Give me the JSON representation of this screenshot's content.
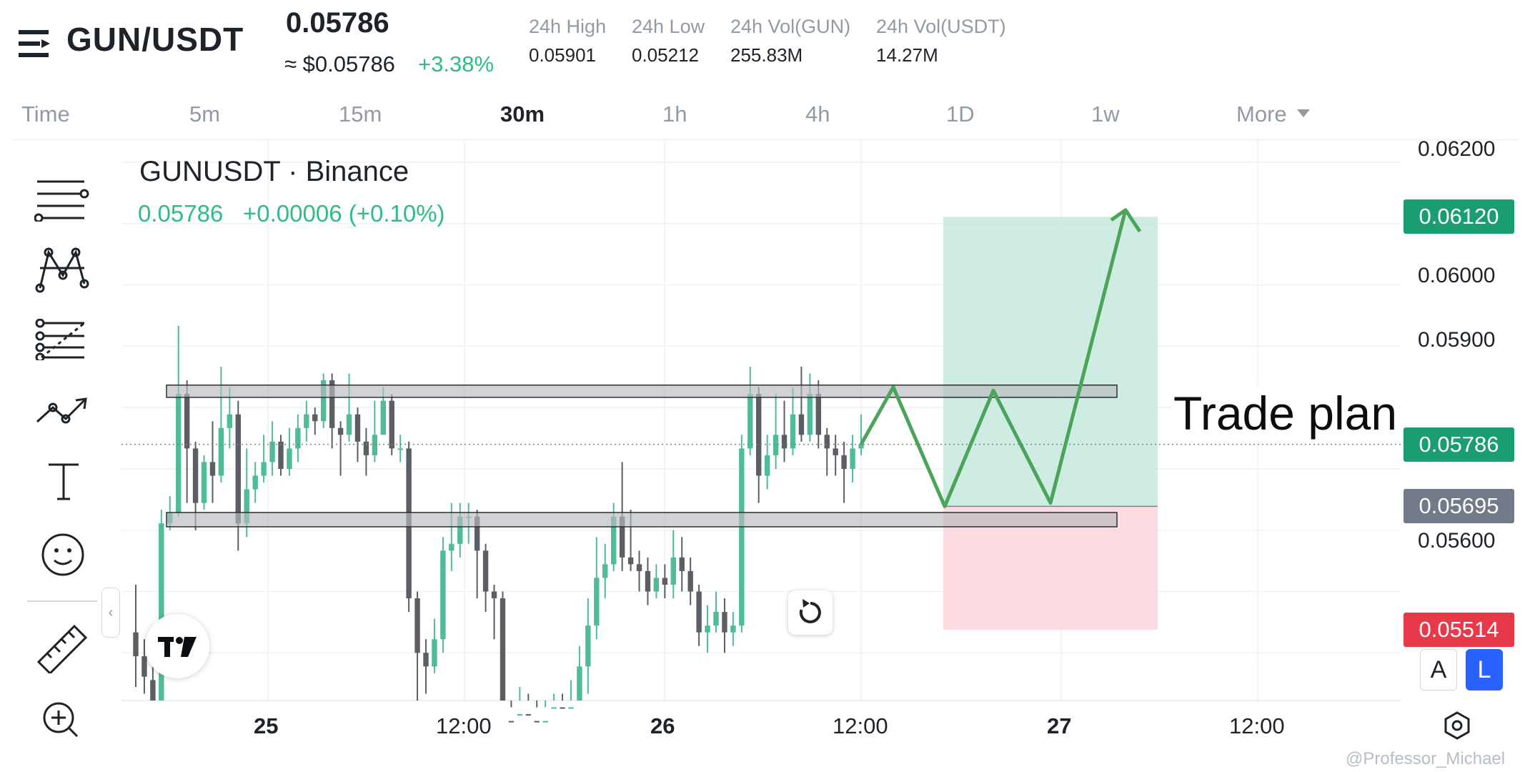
{
  "header": {
    "pair": "GUN/USDT",
    "last_price": "0.05786",
    "usd_price": "≈ $0.05786",
    "change_pct": "+3.38%",
    "stats": [
      {
        "label": "24h High",
        "value": "0.05901"
      },
      {
        "label": "24h Low",
        "value": "0.05212"
      },
      {
        "label": "24h Vol(GUN)",
        "value": "255.83M"
      },
      {
        "label": "24h Vol(USDT)",
        "value": "14.27M"
      }
    ]
  },
  "timeframes": {
    "items": [
      "Time",
      "5m",
      "15m",
      "30m",
      "1h",
      "4h",
      "1D",
      "1w",
      "More"
    ],
    "active": "30m"
  },
  "toolbar": {
    "tools": [
      "menu-lines-icon",
      "pattern-icon",
      "fib-icon",
      "trend-line-icon",
      "text-tool-icon",
      "emoji-icon",
      "ruler-icon",
      "zoom-in-icon"
    ]
  },
  "chart_data": {
    "type": "candlestick",
    "title": "GUNUSDT · Binance",
    "legend_price": "0.05786",
    "legend_change": "+0.00006 (+0.10%)",
    "annotation": "Trade plan",
    "ylim": [
      0.0541,
      0.0622
    ],
    "y_ticks": [
      "0.06200",
      "0.06000",
      "0.05900",
      "0.05600"
    ],
    "x_ticks": [
      {
        "label": "25",
        "bold": true
      },
      {
        "label": "12:00",
        "bold": false
      },
      {
        "label": "26",
        "bold": true
      },
      {
        "label": "12:00",
        "bold": false
      },
      {
        "label": "27",
        "bold": true
      },
      {
        "label": "12:00",
        "bold": false
      }
    ],
    "price_tags": [
      {
        "value": "0.06120",
        "color": "#1a9d72"
      },
      {
        "value": "0.05786",
        "color": "#1a9d72"
      },
      {
        "value": "0.05695",
        "color": "#717a86"
      },
      {
        "value": "0.05514",
        "color": "#e8394b"
      }
    ],
    "current_price": 0.05786,
    "resistance_zone": [
      0.05855,
      0.05873
    ],
    "support_zone": [
      0.05665,
      0.05686
    ],
    "target": 0.0612,
    "entry": 0.05695,
    "stop": 0.05514,
    "up_color": "#4fbb97",
    "down_color": "#5b5e63",
    "candles": [
      [
        0.0551,
        0.05475,
        0.0558,
        0.0543
      ],
      [
        0.05475,
        0.05445,
        0.055,
        0.0542
      ],
      [
        0.0544,
        0.054,
        0.0546,
        0.0538
      ],
      [
        0.054,
        0.0567,
        0.0569,
        0.0538
      ],
      [
        0.0567,
        0.05685,
        0.0571,
        0.0566
      ],
      [
        0.05685,
        0.0586,
        0.0596,
        0.0568
      ],
      [
        0.0586,
        0.0578,
        0.0588,
        0.057
      ],
      [
        0.0578,
        0.057,
        0.0579,
        0.0566
      ],
      [
        0.057,
        0.0576,
        0.0577,
        0.0569
      ],
      [
        0.0576,
        0.0574,
        0.0582,
        0.057
      ],
      [
        0.0574,
        0.0581,
        0.059,
        0.0573
      ],
      [
        0.0581,
        0.0583,
        0.0587,
        0.0578
      ],
      [
        0.0583,
        0.0567,
        0.0585,
        0.0563
      ],
      [
        0.0567,
        0.0572,
        0.0578,
        0.0565
      ],
      [
        0.0572,
        0.0574,
        0.0576,
        0.057
      ],
      [
        0.0574,
        0.0576,
        0.058,
        0.0573
      ],
      [
        0.0576,
        0.0579,
        0.0582,
        0.0574
      ],
      [
        0.0579,
        0.0575,
        0.058,
        0.0574
      ],
      [
        0.0575,
        0.0578,
        0.0581,
        0.0574
      ],
      [
        0.0578,
        0.0581,
        0.0583,
        0.0576
      ],
      [
        0.0581,
        0.0583,
        0.0585,
        0.0579
      ],
      [
        0.0583,
        0.0582,
        0.0584,
        0.058
      ],
      [
        0.0582,
        0.0588,
        0.0589,
        0.0581
      ],
      [
        0.0588,
        0.0581,
        0.0589,
        0.0578
      ],
      [
        0.0581,
        0.058,
        0.0582,
        0.0574
      ],
      [
        0.058,
        0.0583,
        0.0589,
        0.0579
      ],
      [
        0.0583,
        0.0579,
        0.0584,
        0.0576
      ],
      [
        0.0579,
        0.0577,
        0.0581,
        0.0574
      ],
      [
        0.0577,
        0.058,
        0.0585,
        0.0576
      ],
      [
        0.058,
        0.0585,
        0.0587,
        0.058
      ],
      [
        0.0585,
        0.0578,
        0.0586,
        0.0577
      ],
      [
        0.0578,
        0.0578,
        0.058,
        0.0576
      ],
      [
        0.0578,
        0.0556,
        0.0579,
        0.0554
      ],
      [
        0.0556,
        0.0548,
        0.0557,
        0.054
      ],
      [
        0.0548,
        0.0546,
        0.055,
        0.0542
      ],
      [
        0.0546,
        0.055,
        0.0553,
        0.0545
      ],
      [
        0.055,
        0.0563,
        0.0565,
        0.0548
      ],
      [
        0.0563,
        0.0564,
        0.057,
        0.056
      ],
      [
        0.0564,
        0.0568,
        0.057,
        0.0562
      ],
      [
        0.0568,
        0.0568,
        0.057,
        0.0564
      ],
      [
        0.0568,
        0.0563,
        0.0569,
        0.0556
      ],
      [
        0.0563,
        0.0557,
        0.0564,
        0.0554
      ],
      [
        0.0557,
        0.0556,
        0.0558,
        0.055
      ],
      [
        0.0556,
        0.0538,
        0.0557,
        0.053
      ],
      [
        0.0538,
        0.053,
        0.054,
        0.0525
      ],
      [
        0.053,
        0.0539,
        0.0543,
        0.0527
      ],
      [
        0.0539,
        0.0538,
        0.0542,
        0.0535
      ],
      [
        0.0538,
        0.0536,
        0.054,
        0.0533
      ],
      [
        0.0536,
        0.0538,
        0.054,
        0.0535
      ],
      [
        0.0538,
        0.054,
        0.0542,
        0.0537
      ],
      [
        0.054,
        0.0539,
        0.0542,
        0.0536
      ],
      [
        0.0539,
        0.054,
        0.0544,
        0.0537
      ],
      [
        0.054,
        0.0546,
        0.0549,
        0.0539
      ],
      [
        0.0546,
        0.0552,
        0.0556,
        0.0542
      ],
      [
        0.0552,
        0.0559,
        0.0565,
        0.055
      ],
      [
        0.0559,
        0.0561,
        0.0564,
        0.0556
      ],
      [
        0.0561,
        0.0568,
        0.057,
        0.056
      ],
      [
        0.0568,
        0.0562,
        0.0576,
        0.056
      ],
      [
        0.0562,
        0.0561,
        0.0569,
        0.056
      ],
      [
        0.0561,
        0.056,
        0.0563,
        0.0557
      ],
      [
        0.056,
        0.0557,
        0.0562,
        0.0555
      ],
      [
        0.0557,
        0.0559,
        0.0561,
        0.0556
      ],
      [
        0.0559,
        0.0558,
        0.0561,
        0.0556
      ],
      [
        0.0558,
        0.0562,
        0.0566,
        0.0556
      ],
      [
        0.0562,
        0.056,
        0.0565,
        0.0557
      ],
      [
        0.056,
        0.0557,
        0.0562,
        0.0555
      ],
      [
        0.0557,
        0.0551,
        0.0558,
        0.0549
      ],
      [
        0.0551,
        0.0552,
        0.0555,
        0.0548
      ],
      [
        0.0552,
        0.0554,
        0.0557,
        0.0551
      ],
      [
        0.0554,
        0.0551,
        0.0556,
        0.0548
      ],
      [
        0.0551,
        0.0552,
        0.0554,
        0.0549
      ],
      [
        0.0552,
        0.0578,
        0.058,
        0.0551
      ],
      [
        0.0578,
        0.0586,
        0.059,
        0.0577
      ],
      [
        0.0586,
        0.0574,
        0.0587,
        0.057
      ],
      [
        0.0574,
        0.0577,
        0.058,
        0.0572
      ],
      [
        0.0577,
        0.058,
        0.0586,
        0.0575
      ],
      [
        0.058,
        0.0578,
        0.0585,
        0.0576
      ],
      [
        0.0578,
        0.0583,
        0.0587,
        0.0577
      ],
      [
        0.0583,
        0.058,
        0.059,
        0.0579
      ],
      [
        0.058,
        0.0586,
        0.0589,
        0.0579
      ],
      [
        0.0586,
        0.058,
        0.0588,
        0.0578
      ],
      [
        0.058,
        0.0578,
        0.0581,
        0.0574
      ],
      [
        0.0578,
        0.0577,
        0.058,
        0.0574
      ],
      [
        0.0577,
        0.0575,
        0.0579,
        0.057
      ],
      [
        0.0575,
        0.0578,
        0.058,
        0.0573
      ],
      [
        0.0578,
        0.05786,
        0.0583,
        0.0577
      ]
    ],
    "plan_path": [
      [
        0.05786,
        0
      ],
      [
        0.0587,
        1
      ],
      [
        0.05695,
        2
      ],
      [
        0.05865,
        3
      ],
      [
        0.057,
        4
      ],
      [
        0.0613,
        5
      ],
      [
        0.0611,
        6
      ]
    ]
  },
  "controls": {
    "auto_label": "A",
    "log_label": "L",
    "collapse_label": "‹"
  },
  "watermark": "@Professor_Michael"
}
